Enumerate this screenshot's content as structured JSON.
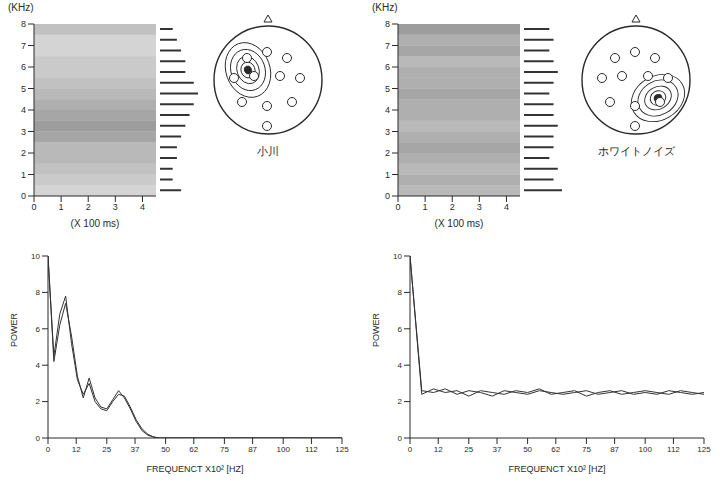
{
  "chart_data": [
    {
      "type": "spectrogram",
      "x_label": "(X 100 ms)",
      "y_label": "(KHz)",
      "xlim": [
        0,
        4.5
      ],
      "xticks": [
        0,
        1,
        2,
        3,
        4
      ],
      "ylim": [
        0,
        8
      ],
      "yticks": [
        0,
        1,
        2,
        3,
        4,
        5,
        6,
        7,
        8
      ],
      "color": "#333333",
      "marginal": [
        3,
        4,
        5,
        6,
        6,
        8,
        9,
        8,
        7,
        6,
        5,
        4,
        4,
        3,
        3,
        5
      ]
    },
    {
      "type": "spectrogram",
      "x_label": "(X 100 ms)",
      "y_label": "(KHz)",
      "xlim": [
        0,
        4.5
      ],
      "xticks": [
        0,
        1,
        2,
        3,
        4
      ],
      "ylim": [
        0,
        8
      ],
      "yticks": [
        0,
        1,
        2,
        3,
        4,
        5,
        6,
        7,
        8
      ],
      "color": "#333333",
      "marginal": [
        6,
        7,
        6,
        7,
        8,
        7,
        6,
        7,
        7,
        8,
        7,
        7,
        6,
        8,
        7,
        9
      ]
    },
    {
      "type": "line",
      "x_label": "FREQUENCT X10² [HZ]",
      "y_label": "POWER",
      "xlim": [
        0,
        125
      ],
      "xticks": [
        0,
        12,
        25,
        37,
        50,
        62,
        75,
        87,
        100,
        112,
        125
      ],
      "ylim": [
        0,
        10
      ],
      "yticks": [
        0,
        2,
        4,
        6,
        8,
        10
      ],
      "x": [
        0,
        2.5,
        5,
        7.5,
        10,
        12.5,
        15,
        17.5,
        20,
        22.5,
        25,
        27.5,
        30,
        32.5,
        35,
        37.5,
        40,
        42.5,
        45,
        47.5,
        50,
        52.5,
        55,
        57.5,
        60,
        62.5,
        65,
        67.5,
        70,
        72.5,
        75,
        77.5,
        80,
        82.5,
        85,
        87.5,
        90,
        92.5,
        95,
        97.5,
        100,
        102.5,
        105,
        107.5,
        110,
        112.5,
        115,
        117.5,
        120,
        122.5,
        125
      ],
      "series": [
        {
          "color": "#333333",
          "values": [
            10,
            4.5,
            6.8,
            7.8,
            5.2,
            3.2,
            2.4,
            3.0,
            2.0,
            1.6,
            1.5,
            2.0,
            2.4,
            2.3,
            1.7,
            1.0,
            0.5,
            0.2,
            0.05,
            0,
            0,
            0,
            0,
            0,
            0,
            0,
            0,
            0,
            0,
            0,
            0,
            0,
            0,
            0,
            0,
            0,
            0,
            0,
            0,
            0,
            0,
            0,
            0,
            0,
            0,
            0,
            0,
            0,
            0,
            0,
            0
          ]
        },
        {
          "color": "#333333",
          "values": [
            10,
            4.2,
            6.2,
            7.4,
            5.6,
            3.4,
            2.2,
            3.3,
            2.2,
            1.7,
            1.6,
            2.1,
            2.6,
            2.2,
            1.6,
            0.9,
            0.4,
            0.15,
            0.05,
            0,
            0,
            0,
            0,
            0,
            0,
            0,
            0,
            0,
            0,
            0,
            0,
            0,
            0,
            0,
            0,
            0,
            0,
            0,
            0,
            0,
            0,
            0,
            0,
            0,
            0,
            0,
            0,
            0,
            0,
            0,
            0
          ]
        }
      ]
    },
    {
      "type": "line",
      "x_label": "FREQUENCT X10² [HZ]",
      "y_label": "POWER",
      "xlim": [
        0,
        125
      ],
      "xticks": [
        0,
        12,
        25,
        37,
        50,
        62,
        75,
        87,
        100,
        112,
        125
      ],
      "ylim": [
        0,
        10
      ],
      "yticks": [
        0,
        2,
        4,
        6,
        8,
        10
      ],
      "x": [
        0,
        5,
        10,
        15,
        20,
        25,
        30,
        35,
        40,
        45,
        50,
        55,
        60,
        65,
        70,
        75,
        80,
        85,
        90,
        95,
        100,
        105,
        110,
        115,
        120,
        125
      ],
      "series": [
        {
          "color": "#333333",
          "values": [
            10,
            2.6,
            2.5,
            2.7,
            2.4,
            2.6,
            2.5,
            2.3,
            2.6,
            2.5,
            2.4,
            2.6,
            2.5,
            2.4,
            2.5,
            2.6,
            2.4,
            2.5,
            2.6,
            2.4,
            2.5,
            2.4,
            2.6,
            2.5,
            2.4,
            2.5
          ]
        },
        {
          "color": "#333333",
          "values": [
            10,
            2.4,
            2.7,
            2.5,
            2.6,
            2.3,
            2.6,
            2.5,
            2.4,
            2.6,
            2.5,
            2.7,
            2.4,
            2.5,
            2.6,
            2.3,
            2.5,
            2.6,
            2.4,
            2.5,
            2.6,
            2.5,
            2.4,
            2.6,
            2.5,
            2.4
          ]
        }
      ]
    }
  ],
  "maps": [
    {
      "label": "小川"
    },
    {
      "label": "ホワイトノイズ"
    }
  ]
}
